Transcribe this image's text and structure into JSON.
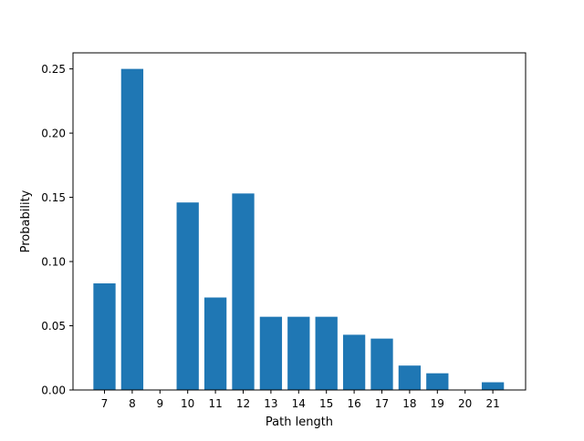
{
  "chart_data": {
    "type": "bar",
    "title": "",
    "xlabel": "Path length",
    "ylabel": "Probability",
    "categories": [
      7,
      8,
      9,
      10,
      11,
      12,
      13,
      14,
      15,
      16,
      17,
      18,
      19,
      20,
      21
    ],
    "values": [
      0.083,
      0.25,
      0.0,
      0.146,
      0.072,
      0.153,
      0.057,
      0.057,
      0.057,
      0.043,
      0.04,
      0.019,
      0.013,
      0.0,
      0.006
    ],
    "ylim": [
      0,
      0.2625
    ],
    "yticks": [
      0.0,
      0.05,
      0.1,
      0.15,
      0.2,
      0.25
    ],
    "ytick_labels": [
      "0.00",
      "0.05",
      "0.10",
      "0.15",
      "0.20",
      "0.25"
    ],
    "grid": false,
    "legend": "none",
    "bar_color": "#1f77b4"
  }
}
